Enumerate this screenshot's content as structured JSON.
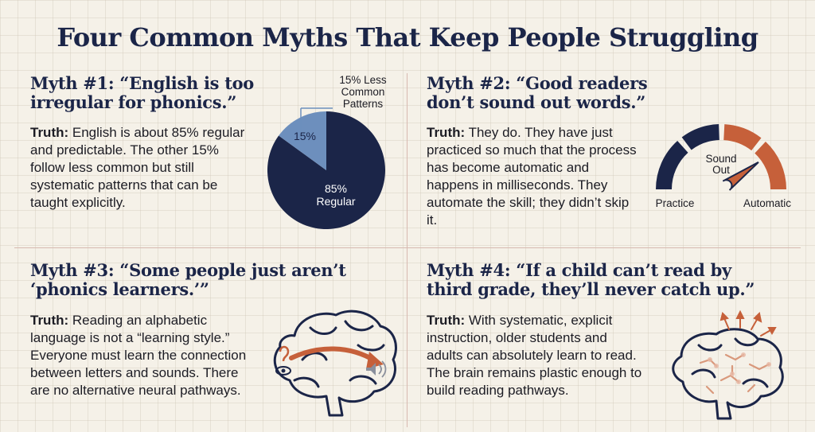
{
  "title": "Four Common Myths That Keep People Struggling",
  "truth_label": "Truth:",
  "myths": [
    {
      "heading_line1": "Myth #1: “English is too",
      "heading_line2": "irregular for phonics.”",
      "truth_text": "English is about 85% regular and predictable. The other 15% follow less common but still systematic patterns that can be taught explicitly."
    },
    {
      "heading_line1": "Myth #2: “Good readers",
      "heading_line2": "don’t sound out words.”",
      "truth_text": "They do. They have just practiced so much that the process has become automatic and happens in milliseconds. They automate the skill; they didn’t skip it."
    },
    {
      "heading_line1": "Myth #3: “Some people just aren’t",
      "heading_line2": "‘phonics learners.’”",
      "truth_text": "Reading an alphabetic language is not a “learning style.” Everyone must learn the connection between letters and sounds. There are no alternative neural pathways."
    },
    {
      "heading_line1": "Myth #4: “If a child can’t read by",
      "heading_line2": "third grade, they’ll never catch up.”",
      "truth_text": "With systematic, explicit instruction, older students and adults can absolutely learn to read. The brain remains plastic enough to build reading pathways."
    }
  ],
  "chart_data": {
    "type": "pie",
    "slices": [
      {
        "label": "Regular",
        "value": 85,
        "value_label": "85%",
        "color": "#1b2548"
      },
      {
        "label": "Less Common Patterns",
        "value": 15,
        "value_label": "15%",
        "color": "#6d8fbd"
      }
    ],
    "callout_lines": [
      "15% Less",
      "Common",
      "Patterns"
    ],
    "inner_label_regular": "Regular"
  },
  "gauge": {
    "center_line1": "Sound",
    "center_line2": "Out",
    "left_label": "Practice",
    "right_label": "Automatic",
    "needle_level_fraction": 0.8,
    "colors": {
      "dark": "#1b2548",
      "accent": "#c6603a"
    }
  },
  "icons": {
    "myth3": "brain-ear-eye-sound-icon",
    "myth4": "brain-growth-arrows-icon"
  }
}
